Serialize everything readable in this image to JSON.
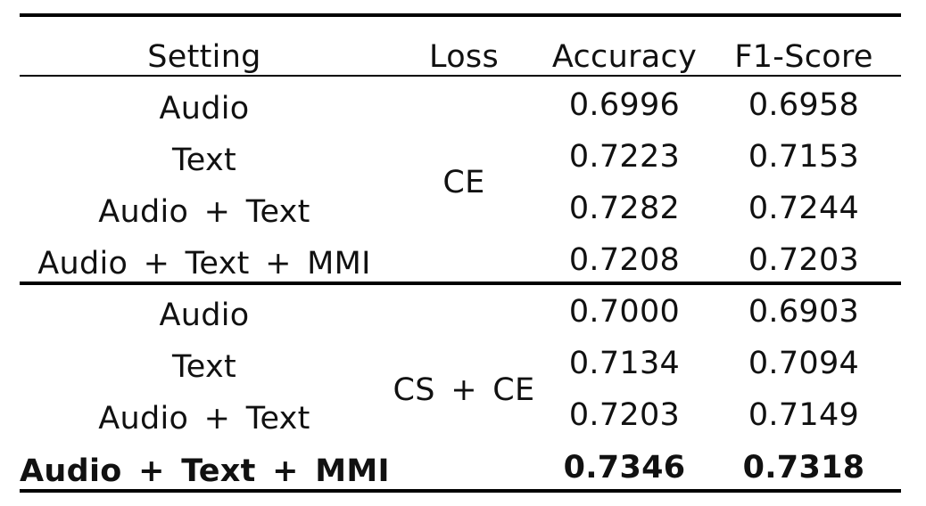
{
  "table": {
    "headers": {
      "setting": "Setting",
      "loss": "Loss",
      "accuracy": "Accuracy",
      "f1": "F1-Score"
    },
    "groups": [
      {
        "loss": "CE",
        "rows": [
          {
            "setting": "Audio",
            "accuracy": "0.6996",
            "f1": "0.6958"
          },
          {
            "setting": "Text",
            "accuracy": "0.7223",
            "f1": "0.7153"
          },
          {
            "setting": "Audio + Text",
            "accuracy": "0.7282",
            "f1": "0.7244"
          },
          {
            "setting": "Audio + Text + MMI",
            "accuracy": "0.7208",
            "f1": "0.7203"
          }
        ]
      },
      {
        "loss": "CS + CE",
        "rows": [
          {
            "setting": "Audio",
            "accuracy": "0.7000",
            "f1": "0.6903"
          },
          {
            "setting": "Text",
            "accuracy": "0.7134",
            "f1": "0.7094"
          },
          {
            "setting": "Audio + Text",
            "accuracy": "0.7203",
            "f1": "0.7149"
          },
          {
            "setting": "Audio + Text + MMI",
            "accuracy": "0.7346",
            "f1": "0.7318",
            "bold": true
          }
        ]
      }
    ]
  }
}
